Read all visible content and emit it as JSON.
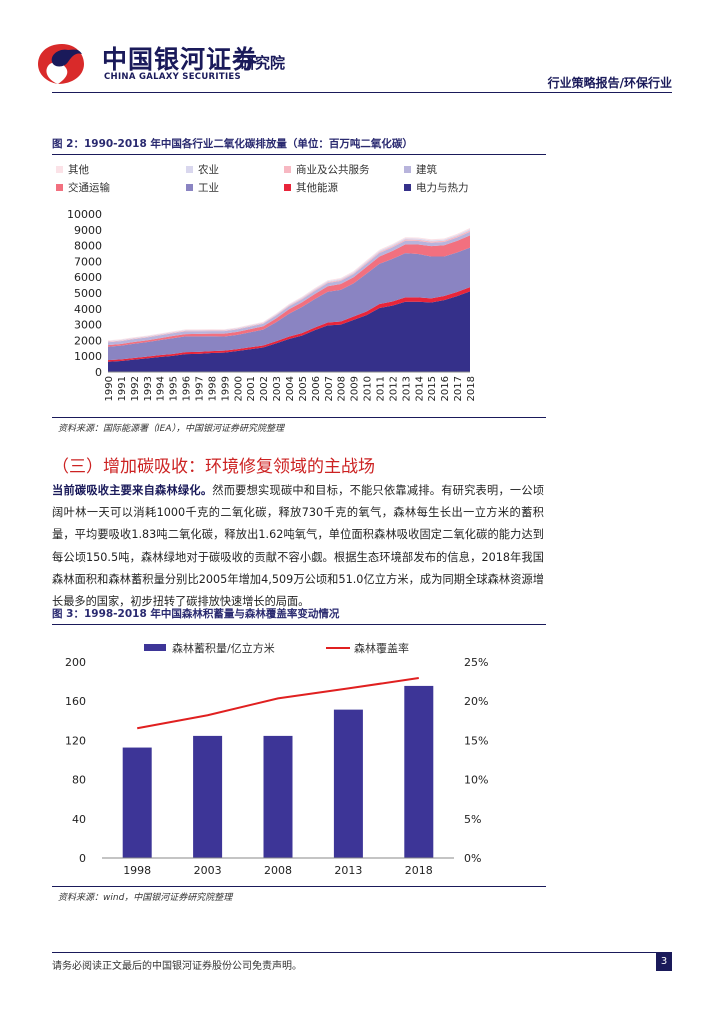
{
  "header": {
    "logo_cn": "中国银河证券",
    "logo_en": "CHINA GALAXY SECURITIES",
    "logo_institute": "研究院",
    "report_type": "行业策略报告/环保行业"
  },
  "figure2": {
    "title": "图 2：1990-2018 年中国各行业二氧化碳排放量（单位：百万吨二氧化碳）",
    "source": "资料来源：国际能源署（IEA），中国银河证券研究院整理"
  },
  "section": {
    "heading": "（三）增加碳吸收：环境修复领域的主战场",
    "lead": "当前碳吸收主要来自森林绿化。",
    "body": "然而要想实现碳中和目标，不能只依靠减排。有研究表明，一公顷阔叶林一天可以消耗1000千克的二氧化碳，释放730千克的氧气，森林每生长出一立方米的蓄积量，平均要吸收1.83吨二氧化碳，释放出1.62吨氧气，单位面积森林吸收固定二氧化碳的能力达到每公顷150.5吨，森林绿地对于碳吸收的贡献不容小觑。根据生态环境部发布的信息，2018年我国森林面积和森林蓄积量分别比2005年增加4,509万公顷和51.0亿立方米，成为同期全球森林资源增长最多的国家，初步扭转了碳排放快速增长的局面。"
  },
  "figure3": {
    "title": "图 3：1998-2018 年中国森林积蓄量与森林覆盖率变动情况",
    "source": "资料来源：wind，中国银河证券研究院整理"
  },
  "footer": {
    "disclaimer": "请务必阅读正文最后的中国银河证券股份公司免责声明。",
    "page": "3"
  },
  "chart_data": [
    {
      "type": "area",
      "stacked": true,
      "x": [
        "1990",
        "1991",
        "1992",
        "1993",
        "1994",
        "1995",
        "1996",
        "1997",
        "1998",
        "1999",
        "2000",
        "2001",
        "2002",
        "2003",
        "2004",
        "2005",
        "2006",
        "2007",
        "2008",
        "2009",
        "2010",
        "2011",
        "2012",
        "2013",
        "2014",
        "2015",
        "2016",
        "2017",
        "2018"
      ],
      "series": [
        {
          "name": "电力与热力",
          "color": "#35308a",
          "values": [
            650,
            700,
            780,
            860,
            950,
            1020,
            1130,
            1150,
            1200,
            1230,
            1330,
            1440,
            1550,
            1810,
            2090,
            2300,
            2650,
            2950,
            3000,
            3300,
            3600,
            4050,
            4200,
            4450,
            4450,
            4400,
            4550,
            4800,
            5100
          ]
        },
        {
          "name": "其他能源",
          "color": "#e8253a",
          "values": [
            100,
            100,
            110,
            110,
            115,
            120,
            125,
            125,
            120,
            120,
            120,
            125,
            130,
            140,
            150,
            160,
            170,
            180,
            200,
            210,
            230,
            250,
            260,
            270,
            270,
            260,
            260,
            260,
            270
          ]
        },
        {
          "name": "工业",
          "color": "#8a84c2",
          "values": [
            850,
            870,
            900,
            920,
            950,
            1000,
            1000,
            980,
            940,
            900,
            900,
            950,
            1000,
            1200,
            1450,
            1650,
            1800,
            1950,
            2000,
            2100,
            2400,
            2550,
            2700,
            2800,
            2750,
            2650,
            2500,
            2500,
            2500
          ]
        },
        {
          "name": "交通运输",
          "color": "#f2707f",
          "values": [
            100,
            105,
            110,
            115,
            125,
            135,
            145,
            155,
            165,
            175,
            190,
            200,
            210,
            240,
            280,
            300,
            320,
            350,
            370,
            390,
            420,
            460,
            500,
            560,
            600,
            660,
            710,
            740,
            780
          ]
        },
        {
          "name": "建筑",
          "color": "#b8b4dc",
          "values": [
            180,
            180,
            180,
            180,
            180,
            175,
            175,
            170,
            165,
            160,
            160,
            160,
            165,
            175,
            185,
            190,
            195,
            200,
            200,
            200,
            210,
            220,
            230,
            230,
            220,
            210,
            210,
            210,
            220
          ]
        },
        {
          "name": "商业及公共服务",
          "color": "#f7b8c2",
          "values": [
            40,
            40,
            40,
            40,
            40,
            40,
            40,
            40,
            40,
            40,
            40,
            40,
            40,
            45,
            50,
            55,
            60,
            60,
            60,
            60,
            70,
            70,
            70,
            80,
            80,
            80,
            80,
            90,
            90
          ]
        },
        {
          "name": "农业",
          "color": "#d9d7ee",
          "values": [
            40,
            40,
            40,
            40,
            40,
            40,
            40,
            40,
            40,
            40,
            40,
            40,
            40,
            45,
            50,
            55,
            60,
            60,
            60,
            65,
            70,
            70,
            70,
            70,
            70,
            70,
            70,
            70,
            80
          ]
        },
        {
          "name": "其他",
          "color": "#fbe2e7",
          "values": [
            40,
            40,
            40,
            40,
            40,
            40,
            40,
            40,
            40,
            40,
            40,
            40,
            40,
            45,
            50,
            55,
            60,
            60,
            60,
            65,
            70,
            70,
            70,
            70,
            70,
            70,
            70,
            70,
            70
          ]
        }
      ],
      "ylim": [
        0,
        10000
      ],
      "yticks": [
        "0",
        "1000",
        "2000",
        "3000",
        "4000",
        "5000",
        "6000",
        "7000",
        "8000",
        "9000",
        "10000"
      ],
      "legend_position": "top"
    },
    {
      "type": "bar",
      "categories": [
        "1998",
        "2003",
        "2008",
        "2013",
        "2018"
      ],
      "series": [
        {
          "name": "森林蓄积量/亿立方米",
          "color": "#3d3597",
          "values": [
            112.7,
            124.6,
            124.6,
            151.4,
            175.6
          ]
        },
        {
          "name": "森林覆盖率",
          "type": "line",
          "color": "#e02020",
          "axis": "right",
          "values": [
            16.55,
            18.21,
            20.36,
            21.63,
            22.96
          ]
        }
      ],
      "ylim": [
        0,
        200
      ],
      "yticks": [
        "0",
        "40",
        "80",
        "120",
        "160",
        "200"
      ],
      "y2lim": [
        0,
        25
      ],
      "y2ticks": [
        "0%",
        "5%",
        "10%",
        "15%",
        "20%",
        "25%"
      ],
      "legend_position": "top"
    }
  ]
}
